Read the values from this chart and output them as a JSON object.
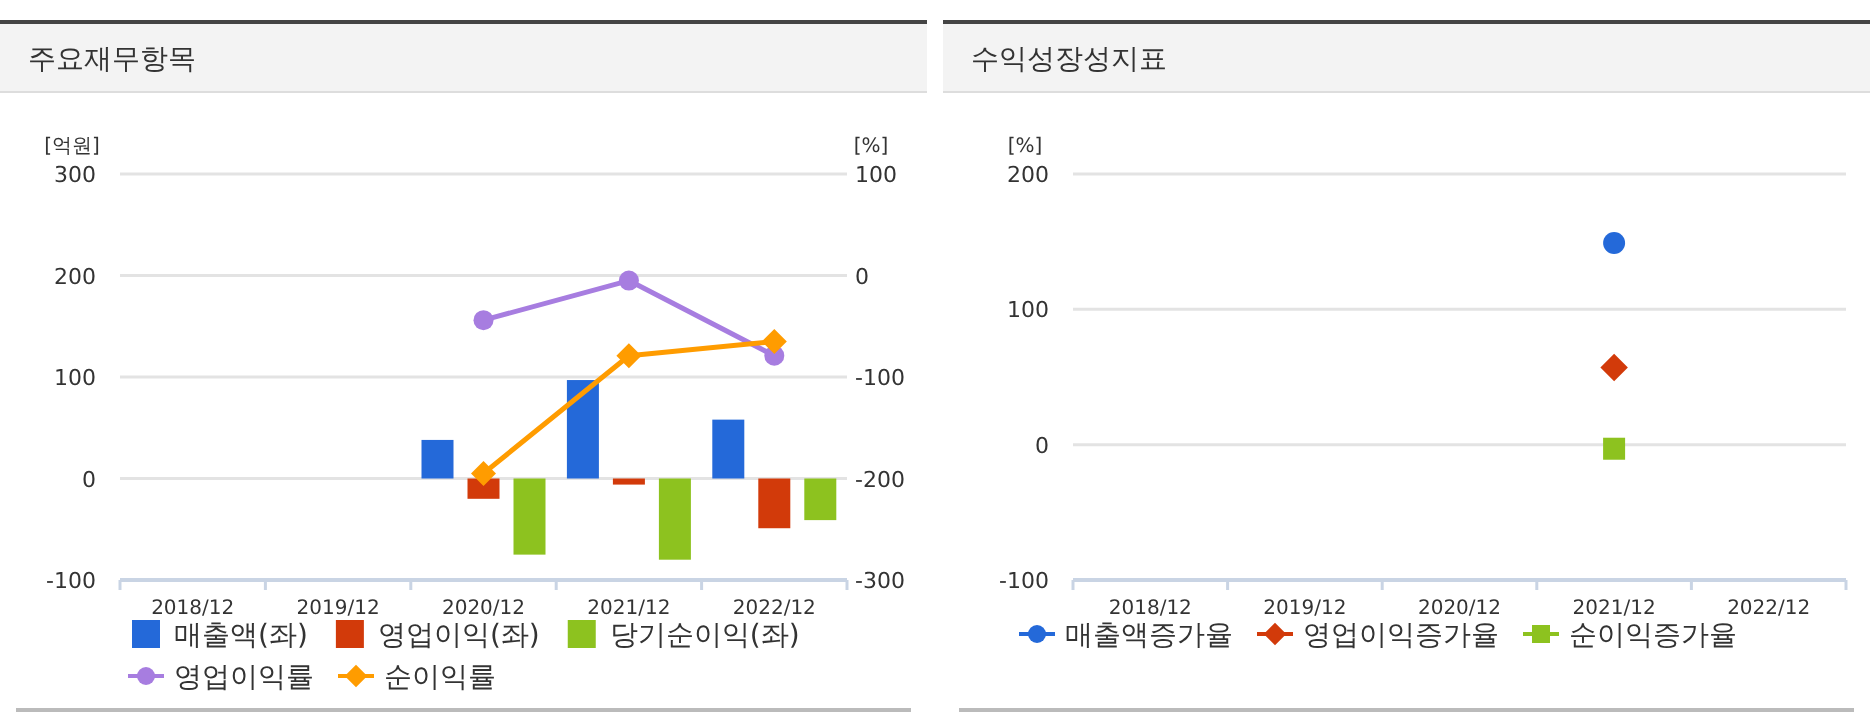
{
  "chart_data": [
    {
      "type": "bar",
      "title": "주요재무항목",
      "ylabel": "[억원]",
      "y2label": "[%]",
      "categories": [
        "2018/12",
        "2019/12",
        "2020/12",
        "2021/12",
        "2022/12"
      ],
      "ylim": [
        -100,
        300
      ],
      "yticks": [
        -100,
        0,
        100,
        200,
        300
      ],
      "y2lim": [
        -300,
        100
      ],
      "y2ticks": [
        -300,
        -200,
        -100,
        0,
        100
      ],
      "grid": "y",
      "legend": "bottom",
      "series": [
        {
          "name": "매출액(좌)",
          "color": "#2469d9",
          "values": [
            null,
            null,
            38,
            97,
            58
          ]
        },
        {
          "name": "영업이익(좌)",
          "color": "#d23a0a",
          "values": [
            null,
            null,
            -20,
            -6,
            -49
          ]
        },
        {
          "name": "당기순이익(좌)",
          "color": "#8dc21f",
          "values": [
            null,
            null,
            -75,
            -80,
            -41
          ]
        },
        {
          "name": "영업이익률",
          "type": "line",
          "axis": "y2",
          "color": "#a77de0",
          "marker": "circle",
          "values": [
            null,
            null,
            -44,
            -5,
            -79
          ]
        },
        {
          "name": "순이익률",
          "type": "line",
          "axis": "y2",
          "color": "#ff9c00",
          "marker": "diamond",
          "values": [
            null,
            null,
            -195,
            -79,
            -65
          ]
        }
      ]
    },
    {
      "type": "scatter",
      "title": "수익성장성지표",
      "ylabel": "[%]",
      "categories": [
        "2018/12",
        "2019/12",
        "2020/12",
        "2021/12",
        "2022/12"
      ],
      "ylim": [
        -100,
        200
      ],
      "yticks": [
        -100,
        0,
        100,
        200
      ],
      "grid": "y",
      "legend": "bottom",
      "series": [
        {
          "name": "매출액증가율",
          "color": "#2469d9",
          "marker": "circle",
          "values": [
            null,
            null,
            null,
            149,
            null
          ]
        },
        {
          "name": "영업이익증가율",
          "color": "#d23a0a",
          "marker": "diamond",
          "values": [
            null,
            null,
            null,
            57,
            null
          ]
        },
        {
          "name": "순이익증가율",
          "color": "#8dc21f",
          "marker": "square",
          "values": [
            null,
            null,
            null,
            -3,
            null
          ]
        }
      ]
    }
  ]
}
